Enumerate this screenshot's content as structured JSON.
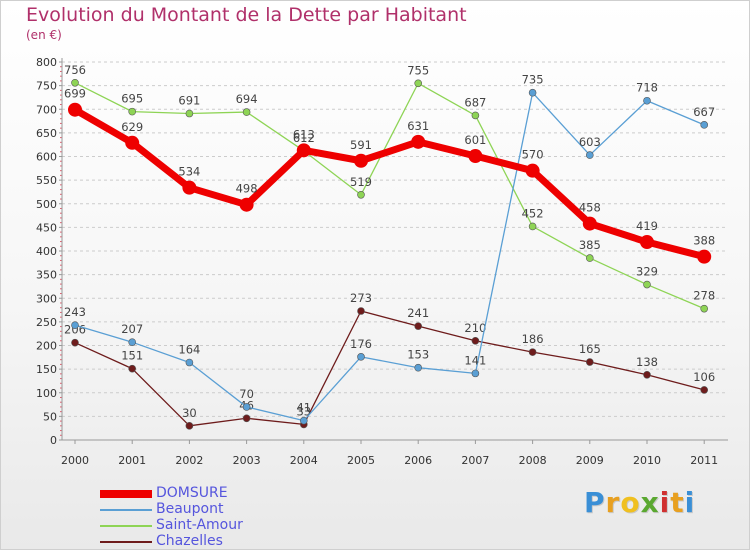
{
  "title": "Evolution du Montant de la Dette par Habitant",
  "subtitle": "(en €)",
  "logo": {
    "letters": [
      "P",
      "r",
      "o",
      "x",
      "i",
      "t",
      "i"
    ],
    "colors": [
      "#3a8fd6",
      "#e8a020",
      "#f0c020",
      "#5aa830",
      "#d03030",
      "#e8a020",
      "#3a8fd6"
    ]
  },
  "chart_data": {
    "type": "line",
    "x": [
      "2000",
      "2001",
      "2002",
      "2003",
      "2004",
      "2005",
      "2006",
      "2007",
      "2008",
      "2009",
      "2010",
      "2011"
    ],
    "ylim": [
      0,
      800
    ],
    "yticks": [
      "0",
      "50",
      "100",
      "150",
      "200",
      "250",
      "300",
      "350",
      "400",
      "450",
      "500",
      "550",
      "600",
      "650",
      "700",
      "750",
      "800"
    ],
    "grid": true,
    "legend_position": "bottom-left",
    "series": [
      {
        "name": "Chazelles",
        "color": "#6e1c1c",
        "values": [
          206,
          151,
          30,
          46,
          33,
          273,
          241,
          210,
          186,
          165,
          138,
          106
        ],
        "labels": [
          "206",
          "151",
          "30",
          "46",
          "33",
          "273",
          "241",
          "210",
          "186",
          "165",
          "138",
          "106"
        ]
      },
      {
        "name": "Saint-Amour",
        "color": "#8ed455",
        "values": [
          756,
          695,
          691,
          694,
          612,
          519,
          755,
          687,
          452,
          385,
          329,
          278
        ],
        "labels": [
          "756",
          "695",
          "691",
          "694",
          "612",
          "519",
          "755",
          "687",
          "452",
          "385",
          "329",
          "278"
        ]
      },
      {
        "name": "Beaupont",
        "color": "#5a9fd4",
        "values": [
          243,
          207,
          164,
          70,
          41,
          176,
          153,
          141,
          735,
          603,
          718,
          667
        ],
        "labels": [
          "243",
          "207",
          "164",
          "70",
          "41",
          "176",
          "153",
          "141",
          "735",
          "603",
          "718",
          "667"
        ]
      },
      {
        "name": "DOMSURE",
        "color": "#ee0000",
        "values": [
          699,
          629,
          534,
          498,
          613,
          591,
          631,
          601,
          570,
          458,
          419,
          388
        ],
        "labels": [
          "699",
          "629",
          "534",
          "498",
          "613",
          "591",
          "631",
          "601",
          "570",
          "458",
          "419",
          "388"
        ]
      }
    ],
    "legend": [
      {
        "name": "DOMSURE",
        "color": "#ee0000",
        "text_color": "#5555dd"
      },
      {
        "name": "Beaupont",
        "color": "#5a9fd4",
        "text_color": "#5555dd"
      },
      {
        "name": "Saint-Amour",
        "color": "#8ed455",
        "text_color": "#5555dd"
      },
      {
        "name": "Chazelles",
        "color": "#6e1c1c",
        "text_color": "#5555dd"
      }
    ]
  }
}
